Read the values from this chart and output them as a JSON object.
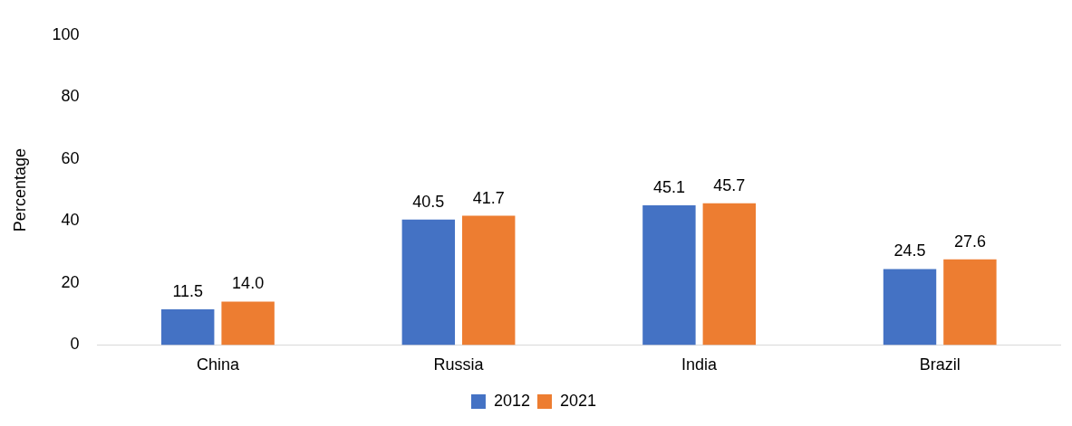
{
  "chart_data": {
    "type": "bar",
    "ylabel": "Percentage",
    "categories": [
      "China",
      "Russia",
      "India",
      "Brazil"
    ],
    "series": [
      {
        "name": "2012",
        "color": "#4472c4",
        "values": [
          11.5,
          40.5,
          45.1,
          24.5
        ],
        "value_labels": [
          "11.5",
          "40.5",
          "45.1",
          "24.5"
        ]
      },
      {
        "name": "2021",
        "color": "#ed7d31",
        "values": [
          14.0,
          41.7,
          45.7,
          27.6
        ],
        "value_labels": [
          "14.0",
          "41.7",
          "45.7",
          "27.6"
        ]
      }
    ],
    "ylim": [
      0,
      100
    ],
    "yticks": [
      0,
      20,
      40,
      60,
      80,
      100
    ],
    "grid": false,
    "legend": "bottom"
  }
}
